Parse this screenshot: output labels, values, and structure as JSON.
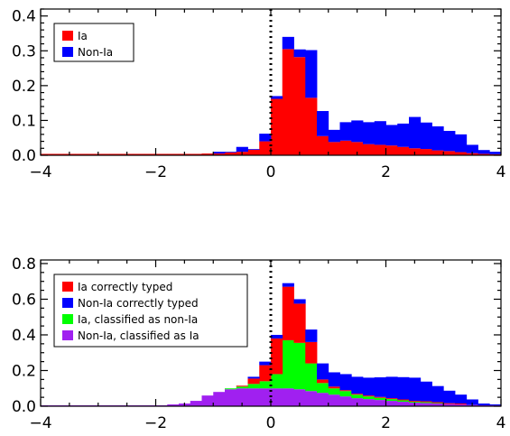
{
  "chart_data": [
    {
      "type": "bar",
      "stacked": true,
      "xlim": [
        -4,
        4
      ],
      "ylim": [
        0,
        0.42
      ],
      "x_ticks": [
        "−4",
        "−2",
        "0",
        "2",
        "4"
      ],
      "y_ticks": [
        "0.0",
        "0.1",
        "0.2",
        "0.3",
        "0.4"
      ],
      "bin_width": 0.2,
      "bin_start": -4,
      "vertical_line_x": 0,
      "legend_position": "top-left",
      "series": [
        {
          "name": "Ia",
          "color": "#ff0000",
          "values": [
            0.004,
            0.004,
            0.004,
            0.004,
            0.004,
            0.004,
            0.004,
            0.004,
            0.004,
            0.004,
            0.004,
            0.004,
            0.004,
            0.004,
            0.005,
            0.005,
            0.008,
            0.01,
            0.016,
            0.04,
            0.162,
            0.305,
            0.282,
            0.165,
            0.055,
            0.038,
            0.042,
            0.038,
            0.032,
            0.03,
            0.028,
            0.024,
            0.02,
            0.018,
            0.014,
            0.012,
            0.009,
            0.006,
            0.004,
            0.003
          ]
        },
        {
          "name": "Non-Ia",
          "color": "#0000ff",
          "values": [
            0.0,
            0.0,
            0.0,
            0.0,
            0.0,
            0.0,
            0.0,
            0.0,
            0.0,
            0.0,
            0.0,
            0.0,
            0.0,
            0.0,
            0.0,
            0.005,
            0.002,
            0.014,
            0.002,
            0.022,
            0.008,
            0.035,
            0.022,
            0.137,
            0.072,
            0.035,
            0.053,
            0.062,
            0.063,
            0.068,
            0.059,
            0.067,
            0.09,
            0.076,
            0.069,
            0.058,
            0.051,
            0.024,
            0.011,
            0.007
          ]
        }
      ]
    },
    {
      "type": "bar",
      "stacked": true,
      "xlim": [
        -4,
        4
      ],
      "ylim": [
        0,
        0.82
      ],
      "x_ticks": [
        "−4",
        "−2",
        "0",
        "2",
        "4"
      ],
      "y_ticks": [
        "0.0",
        "0.2",
        "0.4",
        "0.6",
        "0.8"
      ],
      "bin_width": 0.2,
      "bin_start": -4,
      "vertical_line_x": 0,
      "legend_position": "top-left",
      "series": [
        {
          "name": "Non-Ia, classified as Ia",
          "color": "#a020f0",
          "values": [
            0.005,
            0.005,
            0.005,
            0.005,
            0.005,
            0.005,
            0.005,
            0.005,
            0.005,
            0.005,
            0.005,
            0.01,
            0.015,
            0.03,
            0.06,
            0.08,
            0.095,
            0.1,
            0.1,
            0.1,
            0.1,
            0.1,
            0.095,
            0.085,
            0.075,
            0.065,
            0.055,
            0.045,
            0.04,
            0.035,
            0.03,
            0.025,
            0.02,
            0.018,
            0.015,
            0.012,
            0.01,
            0.008,
            0.005,
            0.005
          ]
        },
        {
          "name": "Ia, classified as non-Ia",
          "color": "#00ff00",
          "values": [
            0.0,
            0.0,
            0.0,
            0.0,
            0.0,
            0.0,
            0.0,
            0.0,
            0.0,
            0.0,
            0.0,
            0.0,
            0.0,
            0.0,
            0.0,
            0.0,
            0.005,
            0.01,
            0.025,
            0.04,
            0.08,
            0.27,
            0.26,
            0.155,
            0.055,
            0.035,
            0.03,
            0.02,
            0.015,
            0.012,
            0.01,
            0.008,
            0.005,
            0.005,
            0.003,
            0.0,
            0.0,
            0.0,
            0.0,
            0.0
          ]
        },
        {
          "name": "Ia correctly typed",
          "color": "#ff0000",
          "values": [
            0.0,
            0.0,
            0.0,
            0.0,
            0.0,
            0.0,
            0.0,
            0.0,
            0.0,
            0.0,
            0.0,
            0.0,
            0.0,
            0.0,
            0.0,
            0.0,
            0.0,
            0.005,
            0.03,
            0.09,
            0.2,
            0.3,
            0.22,
            0.12,
            0.02,
            0.01,
            0.005,
            0.005,
            0.005,
            0.005,
            0.005,
            0.005,
            0.005,
            0.005,
            0.005,
            0.005,
            0.005,
            0.0,
            0.0,
            0.0
          ]
        },
        {
          "name": "Non-Ia correctly typed",
          "color": "#0000ff",
          "values": [
            0.0,
            0.0,
            0.0,
            0.0,
            0.0,
            0.0,
            0.0,
            0.0,
            0.0,
            0.0,
            0.0,
            0.0,
            0.0,
            0.0,
            0.0,
            0.0,
            0.0,
            0.0,
            0.01,
            0.02,
            0.02,
            0.02,
            0.025,
            0.07,
            0.09,
            0.08,
            0.09,
            0.095,
            0.1,
            0.11,
            0.12,
            0.125,
            0.13,
            0.11,
            0.09,
            0.07,
            0.05,
            0.03,
            0.01,
            0.005
          ]
        }
      ]
    }
  ]
}
